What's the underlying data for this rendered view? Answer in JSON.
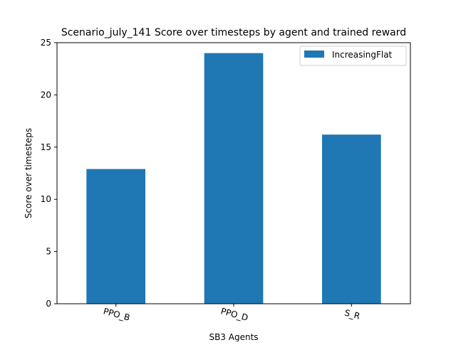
{
  "chart_data": {
    "type": "bar",
    "title": "Scenario_july_141 Score over timesteps by agent and trained reward",
    "xlabel": "SB3 Agents",
    "ylabel": "Score over timesteps",
    "categories": [
      "PPO_B",
      "PPO_D",
      "S_R"
    ],
    "series": [
      {
        "name": "IncreasingFlat",
        "values": [
          12.9,
          24.0,
          16.2
        ],
        "color": "#1f77b4"
      }
    ],
    "ylim": [
      0,
      25
    ],
    "yticks": [
      0,
      5,
      10,
      15,
      20,
      25
    ],
    "grid": false,
    "legend_position": "top-right"
  }
}
